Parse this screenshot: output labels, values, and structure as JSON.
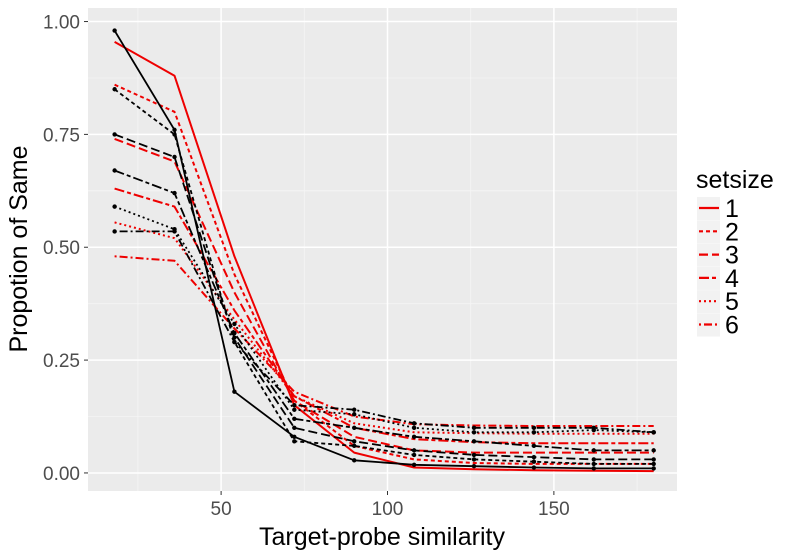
{
  "chart_data": {
    "type": "line",
    "title": "",
    "xlabel": "Target-probe similarity",
    "ylabel": "Propotion of Same",
    "xlim": [
      10,
      187
    ],
    "ylim": [
      -0.04,
      1.03
    ],
    "xticks": [
      {
        "value": 50,
        "label": "50"
      },
      {
        "value": 100,
        "label": "100"
      },
      {
        "value": 150,
        "label": "150"
      }
    ],
    "yticks": [
      {
        "value": 0.0,
        "label": "0.00"
      },
      {
        "value": 0.25,
        "label": "0.25"
      },
      {
        "value": 0.5,
        "label": "0.50"
      },
      {
        "value": 0.75,
        "label": "0.75"
      },
      {
        "value": 1.0,
        "label": "1.00"
      }
    ],
    "x": [
      18,
      36,
      54,
      72,
      90,
      108,
      126,
      144,
      162,
      180
    ],
    "grid": true,
    "legend": {
      "title": "setsize",
      "position": "right",
      "entries": [
        "1",
        "2",
        "3",
        "4",
        "5",
        "6"
      ]
    },
    "series": [
      {
        "name": "1",
        "group": "model",
        "color": "#ee0000",
        "dash": "solid",
        "values": [
          0.955,
          0.88,
          0.48,
          0.15,
          0.045,
          0.012,
          0.008,
          0.006,
          0.005,
          0.004
        ]
      },
      {
        "name": "2",
        "group": "model",
        "color": "#ee0000",
        "dash": "short",
        "values": [
          0.86,
          0.8,
          0.44,
          0.16,
          0.06,
          0.03,
          0.022,
          0.02,
          0.02,
          0.02
        ]
      },
      {
        "name": "3",
        "group": "model",
        "color": "#ee0000",
        "dash": "long",
        "values": [
          0.74,
          0.69,
          0.4,
          0.16,
          0.08,
          0.05,
          0.045,
          0.045,
          0.045,
          0.045
        ]
      },
      {
        "name": "4",
        "group": "model",
        "color": "#ee0000",
        "dash": "longshort",
        "values": [
          0.63,
          0.59,
          0.36,
          0.17,
          0.1,
          0.075,
          0.068,
          0.066,
          0.066,
          0.066
        ]
      },
      {
        "name": "5",
        "group": "model",
        "color": "#ee0000",
        "dash": "dotted",
        "values": [
          0.555,
          0.52,
          0.34,
          0.17,
          0.11,
          0.09,
          0.088,
          0.087,
          0.087,
          0.087
        ]
      },
      {
        "name": "6",
        "group": "model",
        "color": "#ee0000",
        "dash": "dotdash",
        "values": [
          0.48,
          0.47,
          0.32,
          0.18,
          0.125,
          0.108,
          0.105,
          0.104,
          0.104,
          0.104
        ]
      },
      {
        "name": "1",
        "group": "observed",
        "color": "#000000",
        "dash": "solid",
        "values": [
          0.98,
          0.76,
          0.18,
          0.08,
          0.028,
          0.018,
          0.015,
          0.012,
          0.01,
          0.01
        ]
      },
      {
        "name": "2",
        "group": "observed",
        "color": "#000000",
        "dash": "short",
        "values": [
          0.85,
          0.75,
          0.29,
          0.07,
          0.06,
          0.04,
          0.03,
          0.025,
          0.02,
          0.02
        ]
      },
      {
        "name": "3",
        "group": "observed",
        "color": "#000000",
        "dash": "long",
        "values": [
          0.75,
          0.7,
          0.3,
          0.1,
          0.07,
          0.05,
          0.04,
          0.035,
          0.03,
          0.03
        ]
      },
      {
        "name": "4",
        "group": "observed",
        "color": "#000000",
        "dash": "longshort",
        "values": [
          0.67,
          0.62,
          0.31,
          0.12,
          0.1,
          0.08,
          0.07,
          0.06,
          0.05,
          0.05
        ]
      },
      {
        "name": "5",
        "group": "observed",
        "color": "#000000",
        "dash": "dotted",
        "values": [
          0.59,
          0.54,
          0.33,
          0.14,
          0.13,
          0.1,
          0.09,
          0.09,
          0.095,
          0.09
        ]
      },
      {
        "name": "6",
        "group": "observed",
        "color": "#000000",
        "dash": "dotdash",
        "values": [
          0.535,
          0.535,
          0.29,
          0.15,
          0.14,
          0.11,
          0.1,
          0.1,
          0.1,
          0.09
        ]
      }
    ]
  }
}
